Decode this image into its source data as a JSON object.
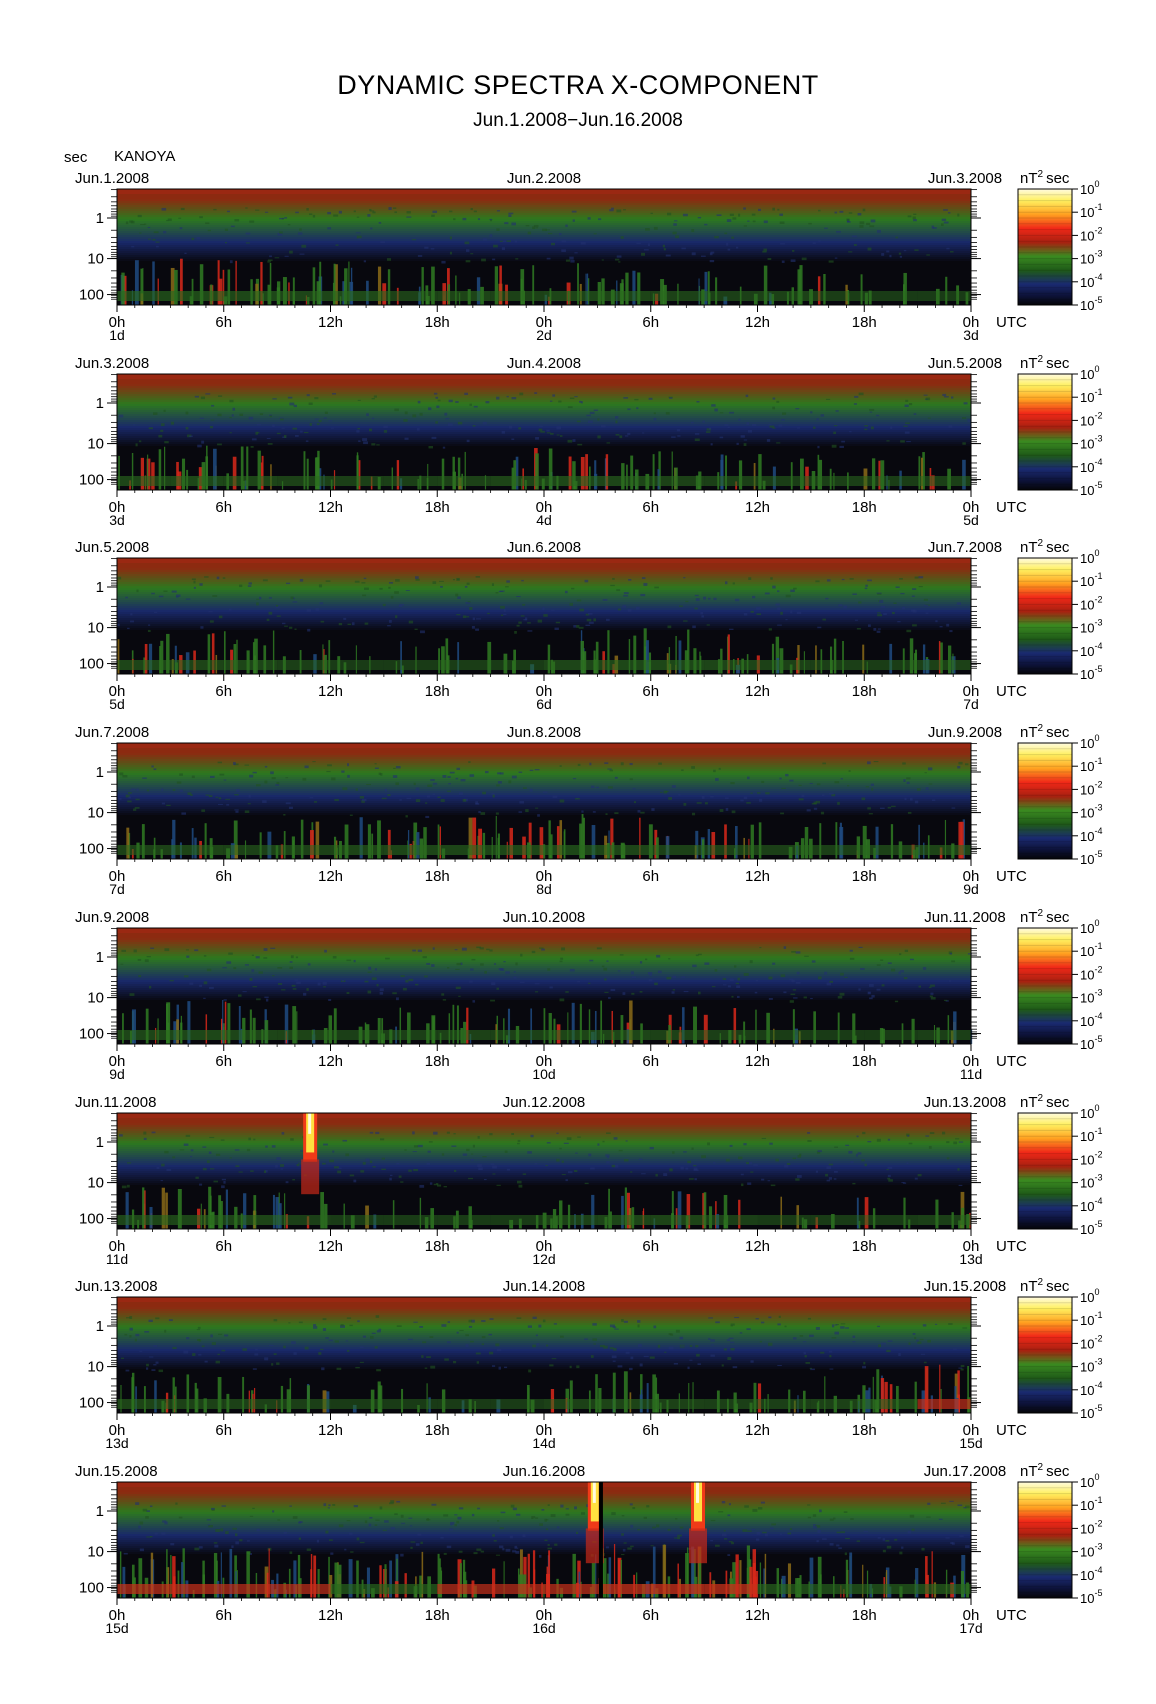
{
  "header": {
    "title": "DYNAMIC SPECTRA X-COMPONENT",
    "subtitle": "Jun.1.2008−Jun.16.2008",
    "y_unit": "sec",
    "station": "KANOYA",
    "colorbar_unit": "nT",
    "colorbar_unit_exp": "2",
    "colorbar_unit_tail": "sec",
    "x_axis_unit": "UTC"
  },
  "colorbar_labels": [
    {
      "base": "10",
      "exp": "0"
    },
    {
      "base": "10",
      "exp": "-1"
    },
    {
      "base": "10",
      "exp": "-2"
    },
    {
      "base": "10",
      "exp": "-3"
    },
    {
      "base": "10",
      "exp": "-4"
    },
    {
      "base": "10",
      "exp": "-5"
    }
  ],
  "colors": {
    "low": "#0a0a12",
    "blue": "#1b2a6e",
    "green": "#2f7a22",
    "red": "#e8241a",
    "yellow": "#ffee30",
    "top_band": "#8c2a10"
  },
  "chart_data": {
    "type": "heatmap",
    "y_scale": "log",
    "y_ticks": [
      "1",
      "10",
      "100"
    ],
    "x_ticks": [
      "0h",
      "6h",
      "12h",
      "18h",
      "0h",
      "6h",
      "12h",
      "18h",
      "0h"
    ],
    "colorbar_range": [
      1e-05,
      1
    ],
    "panels": [
      {
        "date_left": "Jun.1.2008",
        "date_mid": "Jun.2.2008",
        "date_right": "Jun.3.2008",
        "day_labels": [
          "1d",
          "2d",
          "3d"
        ],
        "activity": [
          0.5,
          0.55,
          0.5,
          0.45,
          0.55,
          0.35,
          0.4,
          0.35,
          0.45,
          0.4,
          0.35,
          0.3,
          0.35,
          0.25,
          0.2,
          0.2
        ]
      },
      {
        "date_left": "Jun.3.2008",
        "date_mid": "Jun.4.2008",
        "date_right": "Jun.5.2008",
        "day_labels": [
          "3d",
          "4d",
          "5d"
        ],
        "activity": [
          0.45,
          0.5,
          0.45,
          0.35,
          0.3,
          0.3,
          0.35,
          0.4,
          0.5,
          0.45,
          0.35,
          0.3,
          0.25,
          0.3,
          0.25,
          0.3
        ]
      },
      {
        "date_left": "Jun.5.2008",
        "date_mid": "Jun.6.2008",
        "date_right": "Jun.7.2008",
        "day_labels": [
          "5d",
          "6d",
          "7d"
        ],
        "activity": [
          0.45,
          0.4,
          0.45,
          0.3,
          0.2,
          0.2,
          0.25,
          0.2,
          0.45,
          0.5,
          0.5,
          0.45,
          0.35,
          0.3,
          0.25,
          0.35
        ]
      },
      {
        "date_left": "Jun.7.2008",
        "date_mid": "Jun.8.2008",
        "date_right": "Jun.9.2008",
        "day_labels": [
          "7d",
          "8d",
          "9d"
        ],
        "activity": [
          0.35,
          0.4,
          0.35,
          0.35,
          0.4,
          0.45,
          0.45,
          0.5,
          0.5,
          0.45,
          0.35,
          0.35,
          0.3,
          0.3,
          0.35,
          0.4
        ]
      },
      {
        "date_left": "Jun.9.2008",
        "date_mid": "Jun.10.2008",
        "date_right": "Jun.11.2008",
        "day_labels": [
          "9d",
          "10d",
          "11d"
        ],
        "activity": [
          0.45,
          0.5,
          0.45,
          0.4,
          0.3,
          0.3,
          0.35,
          0.35,
          0.4,
          0.45,
          0.35,
          0.3,
          0.25,
          0.2,
          0.2,
          0.3
        ]
      },
      {
        "date_left": "Jun.11.2008",
        "date_mid": "Jun.12.2008",
        "date_right": "Jun.13.2008",
        "day_labels": [
          "11d",
          "12d",
          "13d"
        ],
        "activity": [
          0.45,
          0.45,
          0.4,
          0.3,
          0.2,
          0.2,
          0.2,
          0.2,
          0.35,
          0.45,
          0.4,
          0.3,
          0.2,
          0.2,
          0.2,
          0.3
        ]
      },
      {
        "date_left": "Jun.13.2008",
        "date_mid": "Jun.14.2008",
        "date_right": "Jun.15.2008",
        "day_labels": [
          "13d",
          "14d",
          "15d"
        ],
        "activity": [
          0.4,
          0.35,
          0.35,
          0.3,
          0.2,
          0.2,
          0.2,
          0.2,
          0.35,
          0.4,
          0.35,
          0.3,
          0.3,
          0.35,
          0.5,
          0.6
        ]
      },
      {
        "date_left": "Jun.15.2008",
        "date_mid": "Jun.16.2008",
        "date_right": "Jun.17.2008",
        "day_labels": [
          "15d",
          "16d",
          "17d"
        ],
        "activity": [
          0.65,
          0.65,
          0.6,
          0.6,
          0.55,
          0.55,
          0.6,
          0.6,
          0.65,
          0.75,
          0.8,
          0.75,
          0.55,
          0.5,
          0.5,
          0.55
        ]
      }
    ],
    "events": [
      {
        "panel": 5,
        "hour": 10.8,
        "kind": "burst"
      },
      {
        "panel": 7,
        "hour": 26.8,
        "kind": "burst"
      },
      {
        "panel": 7,
        "hour": 27.2,
        "kind": "gap"
      },
      {
        "panel": 7,
        "hour": 32.6,
        "kind": "burst"
      }
    ]
  }
}
